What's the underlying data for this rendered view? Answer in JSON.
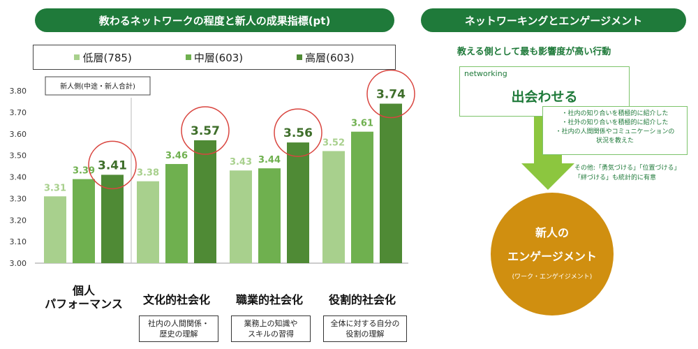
{
  "header_left": "教わるネットワークの程度と新人の成果指標(pt)",
  "header_right": "ネットワーキングとエンゲージメント",
  "legend": [
    {
      "label": "低層(785)",
      "color": "#a8d08d"
    },
    {
      "label": "中層(603)",
      "color": "#6fb04f"
    },
    {
      "label": "高層(603)",
      "color": "#4f8a35"
    }
  ],
  "chart_data": {
    "type": "bar",
    "categories": [
      "個人\nパフォーマンス",
      "文化的社会化",
      "職業的社会化",
      "役割的社会化"
    ],
    "series": [
      {
        "name": "低層(785)",
        "values": [
          3.31,
          3.38,
          3.43,
          3.52
        ]
      },
      {
        "name": "中層(603)",
        "values": [
          3.39,
          3.46,
          3.44,
          3.61
        ]
      },
      {
        "name": "高層(603)",
        "values": [
          3.41,
          3.57,
          3.56,
          3.74
        ]
      }
    ],
    "y_ticks": [
      "3.00",
      "3.10",
      "3.20",
      "3.30",
      "3.40",
      "3.50",
      "3.60",
      "3.70",
      "3.80"
    ],
    "ylim": [
      3.0,
      3.8
    ],
    "panel_label": "新人側(中途・新人合計)",
    "category_notes": [
      "",
      "社内の人間関係・\n歴史の理解",
      "業務上の知識や\nスキルの習得",
      "全体に対する自分の\n役割の理解"
    ]
  },
  "right_panel": {
    "subheading": "教える側として最も影響度が高い行動",
    "networking_small": "networking",
    "networking_big": "出会わせる",
    "bullets": [
      "・社内の知り合いを積極的に紹介した",
      "・社外の知り合いを積極的に紹介した",
      "・社内の人間関係やコミュニケーションの",
      "状況を教えた"
    ],
    "other_note": "その他:「勇気づける」「位置づける」「絆づける」も統計的に有意",
    "circle_line1": "新人の",
    "circle_line2": "エンゲージメント",
    "circle_line3": "(ワーク・エンゲイジメント)"
  },
  "colors": {
    "dark_green": "#1f7a3a",
    "light_green": "#7cc36a",
    "gold": "#d08f10",
    "highlight_circle": "#d9453f"
  }
}
